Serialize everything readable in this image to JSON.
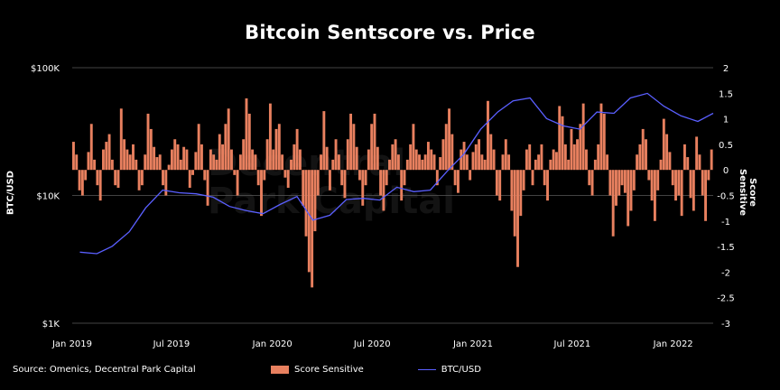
{
  "chart_data": {
    "type": "bar+line",
    "title": "Bitcoin Sentscore vs. Price",
    "ylabel_left": "BTC/USD",
    "ylabel_right": "Score Sensitive",
    "x_ticks": [
      "Jan 2019",
      "Jul 2019",
      "Jan 2020",
      "Jul 2020",
      "Jan 2021",
      "Jul 2021",
      "Jan 2022"
    ],
    "y_left_ticks": [
      "$100K",
      "$10K",
      "$1K"
    ],
    "y_left_scale": "log",
    "y_left_range": [
      1000,
      100000
    ],
    "y_right_ticks": [
      "2",
      "1.5",
      "1",
      "0.5",
      "0",
      "-0.5",
      "-1",
      "-1.5",
      "-2",
      "-2.5",
      "-3"
    ],
    "y_right_range": [
      -3,
      2
    ],
    "legend_position": "bottom",
    "series": [
      {
        "name": "Score Sensitive",
        "kind": "bar",
        "color": "#E8805F",
        "axis": "right",
        "date_range": [
          "2019-01-01",
          "2022-03-15"
        ],
        "values": [
          0.55,
          0.3,
          -0.4,
          -0.5,
          -0.2,
          0.35,
          0.9,
          0.2,
          -0.3,
          -0.6,
          0.4,
          0.55,
          0.7,
          0.2,
          -0.3,
          -0.35,
          1.2,
          0.6,
          0.4,
          0.3,
          0.5,
          0.2,
          -0.4,
          -0.3,
          0.3,
          1.1,
          0.8,
          0.45,
          0.25,
          0.3,
          -0.3,
          -0.5,
          0.1,
          0.4,
          0.6,
          0.5,
          0.2,
          0.45,
          0.4,
          -0.35,
          -0.1,
          0.35,
          0.9,
          0.5,
          -0.2,
          -0.7,
          0.4,
          0.3,
          0.2,
          0.7,
          0.5,
          0.9,
          1.2,
          0.4,
          -0.1,
          -0.5,
          0.3,
          0.6,
          1.4,
          1.1,
          0.4,
          0.3,
          -0.3,
          -0.9,
          -0.2,
          0.6,
          1.3,
          0.4,
          0.8,
          0.9,
          0.3,
          -0.15,
          -0.35,
          0.2,
          0.5,
          0.8,
          0.4,
          -0.7,
          -1.3,
          -2.0,
          -2.3,
          -1.2,
          -0.5,
          0.3,
          1.15,
          0.45,
          -0.4,
          0.2,
          0.6,
          0.3,
          -0.3,
          -0.55,
          0.6,
          1.1,
          0.9,
          0.45,
          -0.2,
          -0.7,
          -0.3,
          0.4,
          0.9,
          1.1,
          0.45,
          -0.5,
          -0.8,
          -0.3,
          0.2,
          0.5,
          0.6,
          0.3,
          -0.6,
          -0.3,
          0.2,
          0.5,
          0.9,
          0.4,
          0.3,
          0.2,
          0.3,
          0.55,
          0.4,
          0.3,
          -0.3,
          0.25,
          0.6,
          0.9,
          1.2,
          0.7,
          -0.3,
          -0.45,
          0.4,
          0.55,
          0.3,
          -0.2,
          0.35,
          0.5,
          0.6,
          0.3,
          0.2,
          1.35,
          0.7,
          0.4,
          -0.5,
          -0.6,
          0.3,
          0.6,
          0.3,
          -0.8,
          -1.3,
          -1.9,
          -0.9,
          -0.4,
          0.4,
          0.5,
          -0.3,
          0.2,
          0.3,
          0.5,
          -0.3,
          -0.6,
          0.2,
          0.4,
          0.35,
          1.25,
          1.05,
          0.5,
          0.2,
          0.8,
          0.5,
          0.6,
          0.9,
          1.3,
          0.4,
          -0.3,
          -0.5,
          0.2,
          0.5,
          1.3,
          1.1,
          0.3,
          -0.5,
          -1.3,
          -0.7,
          -0.5,
          -0.3,
          -0.45,
          -1.1,
          -0.8,
          -0.4,
          0.3,
          0.5,
          0.8,
          0.6,
          -0.2,
          -0.6,
          -1.0,
          -0.4,
          0.2,
          1.0,
          0.7,
          0.35,
          -0.3,
          -0.6,
          -0.5,
          -0.9,
          0.5,
          0.25,
          -0.55,
          -0.8,
          0.65,
          0.3,
          -0.5,
          -1.0,
          -0.2,
          0.4
        ]
      },
      {
        "name": "BTC/USD",
        "kind": "line",
        "color": "#5a5fff",
        "axis": "left",
        "x": [
          "2019-01",
          "2019-02",
          "2019-03",
          "2019-04",
          "2019-05",
          "2019-06",
          "2019-07",
          "2019-08",
          "2019-09",
          "2019-10",
          "2019-11",
          "2019-12",
          "2020-01",
          "2020-02",
          "2020-03",
          "2020-04",
          "2020-05",
          "2020-06",
          "2020-07",
          "2020-08",
          "2020-09",
          "2020-10",
          "2020-11",
          "2020-12",
          "2021-01",
          "2021-02",
          "2021-03",
          "2021-04",
          "2021-05",
          "2021-06",
          "2021-07",
          "2021-08",
          "2021-09",
          "2021-10",
          "2021-11",
          "2021-12",
          "2022-01",
          "2022-02",
          "2022-03"
        ],
        "values": [
          3600,
          3500,
          4000,
          5200,
          8000,
          11000,
          10500,
          10300,
          9700,
          8200,
          7600,
          7200,
          8500,
          9800,
          6400,
          7000,
          9300,
          9500,
          9200,
          11600,
          10700,
          11000,
          15500,
          21000,
          33000,
          45000,
          55000,
          58000,
          40000,
          35000,
          33000,
          45000,
          44000,
          58000,
          63000,
          50000,
          42000,
          38000,
          44000
        ]
      }
    ],
    "source": "Source: Omenics, Decentral Park Capital",
    "watermark": [
      "Decentral",
      "Park Capital"
    ]
  },
  "colors": {
    "background": "#000000",
    "bar": "#E8805F",
    "line": "#5a5fff",
    "grid": "#5a5a5a"
  }
}
